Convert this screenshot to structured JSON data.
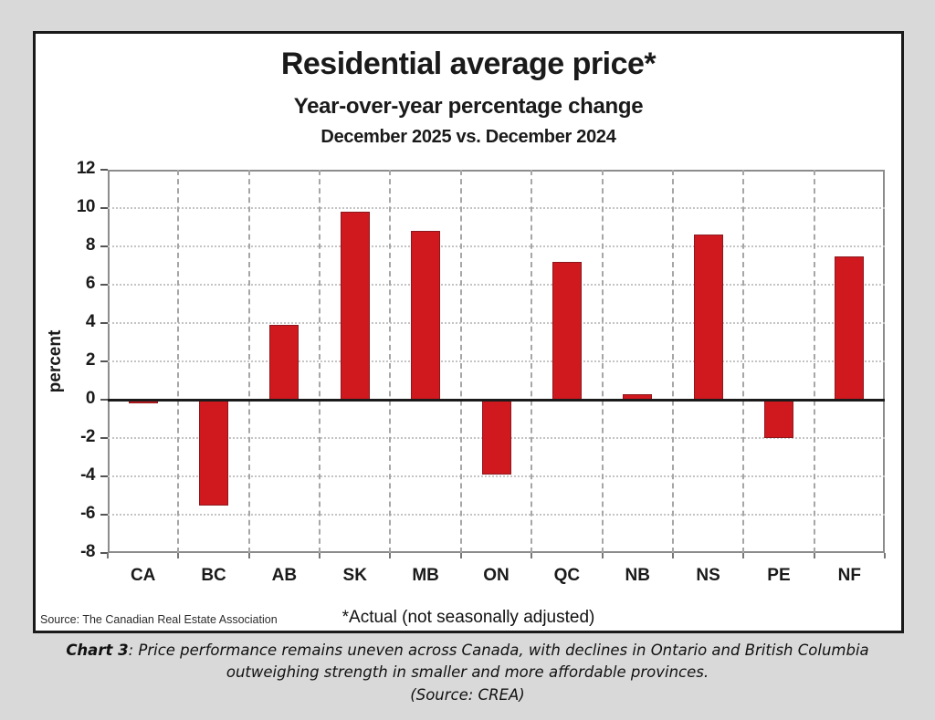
{
  "chart_data": {
    "type": "bar",
    "title": "Residential average price*",
    "subtitle": "Year-over-year percentage change",
    "comparison": "December 2025 vs. December 2024",
    "ylabel": "percent",
    "categories": [
      "CA",
      "BC",
      "AB",
      "SK",
      "MB",
      "ON",
      "QC",
      "NB",
      "NS",
      "PE",
      "NF"
    ],
    "values": [
      -0.2,
      -5.5,
      3.9,
      9.8,
      8.8,
      -3.9,
      7.2,
      0.3,
      8.6,
      -2.0,
      7.5
    ],
    "ylim": [
      -8,
      12
    ],
    "ytick_step": 2,
    "grid": true,
    "legend_position": "none",
    "bar_color": "#d0191f",
    "bar_border_color": "#8d181c",
    "source_note": "Source: The Canadian Real Estate Association",
    "footnote": "*Actual (not seasonally adjusted)"
  },
  "caption": {
    "label": "Chart 3",
    "line1": ": Price performance remains uneven across Canada, with declines in Ontario and British Columbia",
    "line2": "outweighing strength in smaller and more affordable provinces.",
    "line3": "(Source: CREA)"
  }
}
